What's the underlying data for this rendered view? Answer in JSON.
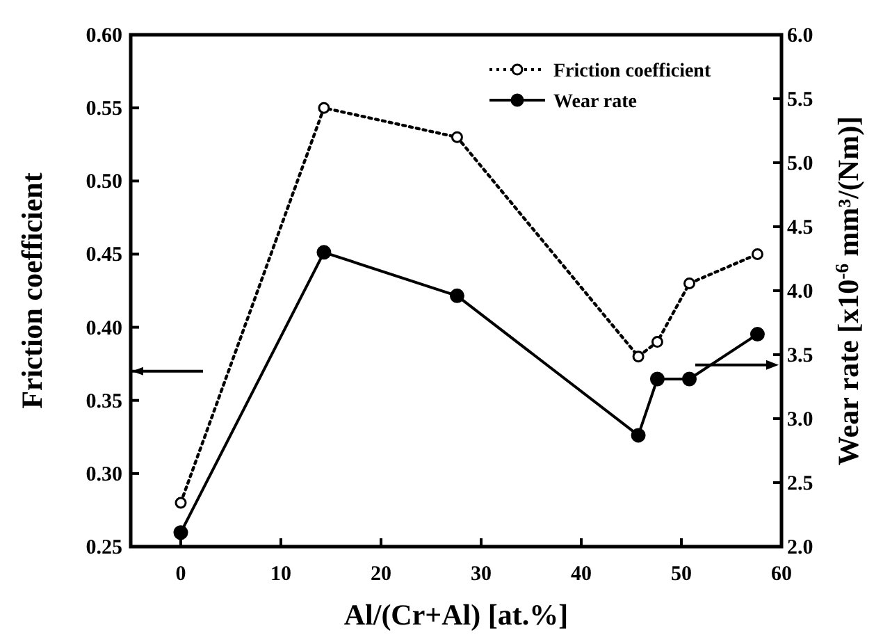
{
  "chart_data": {
    "type": "line",
    "xlabel": "Al/(Cr+Al) [at.%]",
    "ylabel": "Friction coefficient",
    "y2label": "Wear rate [x10$^{-6}$ mm³/(Nm)]",
    "x": [
      0,
      14.3,
      27.6,
      45.7,
      47.6,
      50.8,
      57.6
    ],
    "series": [
      {
        "name": "Friction coefficient",
        "color": "#000000",
        "values": [
          0.28,
          0.55,
          0.53,
          0.38,
          0.39,
          0.43,
          0.45
        ],
        "line_style": "dotted",
        "marker": "circle"
      },
      {
        "name": "Wear rate",
        "color": "#000000",
        "values": [
          2.11,
          4.3,
          3.96,
          2.87,
          3.31,
          3.31,
          3.66
        ],
        "line_style": "solid",
        "marker": "circle",
        "axis": "y2"
      }
    ],
    "xlim": [
      -5,
      60
    ],
    "xticks": [
      0,
      10,
      20,
      30,
      40,
      50,
      60
    ],
    "ylim": [
      0.25,
      0.6
    ],
    "yticks": [
      {
        "value": 0.25,
        "label": "0.25"
      },
      {
        "value": 0.3,
        "label": "0.30"
      },
      {
        "value": 0.35,
        "label": "0.35"
      },
      {
        "value": 0.4,
        "label": "0.40"
      },
      {
        "value": 0.45,
        "label": "0.45"
      },
      {
        "value": 0.5,
        "label": "0.50"
      },
      {
        "value": 0.55,
        "label": "0.55"
      },
      {
        "value": 0.6,
        "label": "0.60"
      }
    ],
    "y2lim": [
      2,
      6
    ],
    "y2ticks": [
      {
        "value": 2,
        "label": "2.0"
      },
      {
        "value": 2.5,
        "label": "2.5"
      },
      {
        "value": 3,
        "label": "3.0"
      },
      {
        "value": 3.5,
        "label": "3.5"
      },
      {
        "value": 4,
        "label": "4.0"
      },
      {
        "value": 4.5,
        "label": "4.5"
      },
      {
        "value": 5,
        "label": "5.0"
      },
      {
        "value": 5.5,
        "label": "5.5"
      },
      {
        "value": 6,
        "label": "6.0"
      }
    ],
    "grid": false,
    "legend": "top right"
  }
}
